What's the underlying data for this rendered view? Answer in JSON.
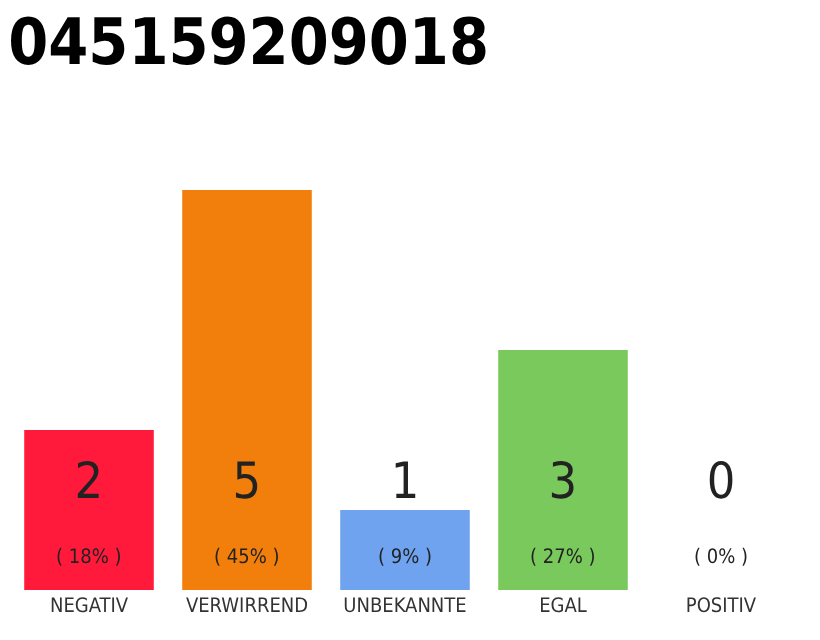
{
  "chart_data": {
    "type": "bar",
    "title": "045159209018",
    "categories": [
      "NEGATIV",
      "VERWIRREND",
      "UNBEKANNTE",
      "EGAL",
      "POSITIV"
    ],
    "values": [
      2,
      5,
      1,
      3,
      0
    ],
    "value_labels": [
      "2\n( 18% )",
      "5\n( 45% )",
      "1\n( 9% )",
      "3\n( 27% )",
      "0\n( 0% )"
    ],
    "colors": [
      "#ff1a3c",
      "#f27f0c",
      "#6fa3ef",
      "#7ac95c",
      "#cccccc"
    ],
    "grid": false,
    "legend": false
  }
}
